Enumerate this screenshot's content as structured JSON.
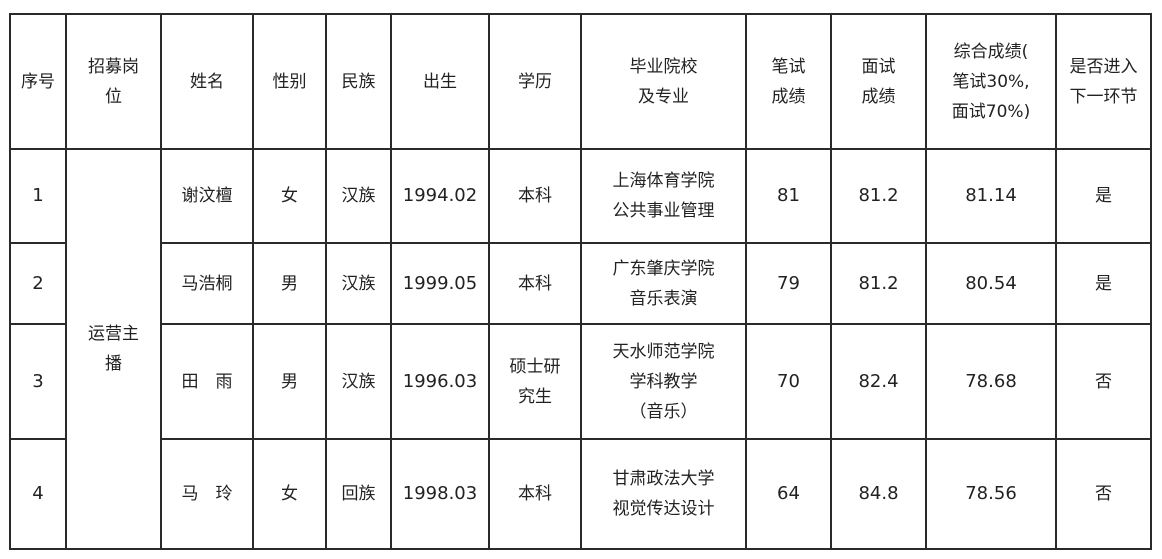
{
  "headers": [
    "序号",
    "招募岗\n位",
    "姓名",
    "性别",
    "民族",
    "出生",
    "学历",
    "毕业院校\n及专业",
    "笔试\n成绩",
    "面试\n成绩",
    "综合成绩(\n笔试30%,\n面试70%)",
    "是否进入\n下一环节"
  ],
  "position": "运营主\n播",
  "rows": [
    {
      "no": "1",
      "name": "谢汶檀",
      "gender": "女",
      "ethnicity": "汉族",
      "birth": "1994.02",
      "education": "本科",
      "school": "上海体育学院\n公共事业管理",
      "written": "81",
      "interview": "81.2",
      "total": "81.14",
      "advance": "是"
    },
    {
      "no": "2",
      "name": "马浩桐",
      "gender": "男",
      "ethnicity": "汉族",
      "birth": "1999.05",
      "education": "本科",
      "school": "广东肇庆学院\n音乐表演",
      "written": "79",
      "interview": "81.2",
      "total": "80.54",
      "advance": "是"
    },
    {
      "no": "3",
      "name": "田　雨",
      "gender": "男",
      "ethnicity": "汉族",
      "birth": "1996.03",
      "education": "硕士研\n究生",
      "school": "天水师范学院\n学科教学\n（音乐）",
      "written": "70",
      "interview": "82.4",
      "total": "78.68",
      "advance": "否"
    },
    {
      "no": "4",
      "name": "马　玲",
      "gender": "女",
      "ethnicity": "回族",
      "birth": "1998.03",
      "education": "本科",
      "school": "甘肃政法大学\n视觉传达设计",
      "written": "64",
      "interview": "84.8",
      "total": "78.56",
      "advance": "否"
    }
  ]
}
